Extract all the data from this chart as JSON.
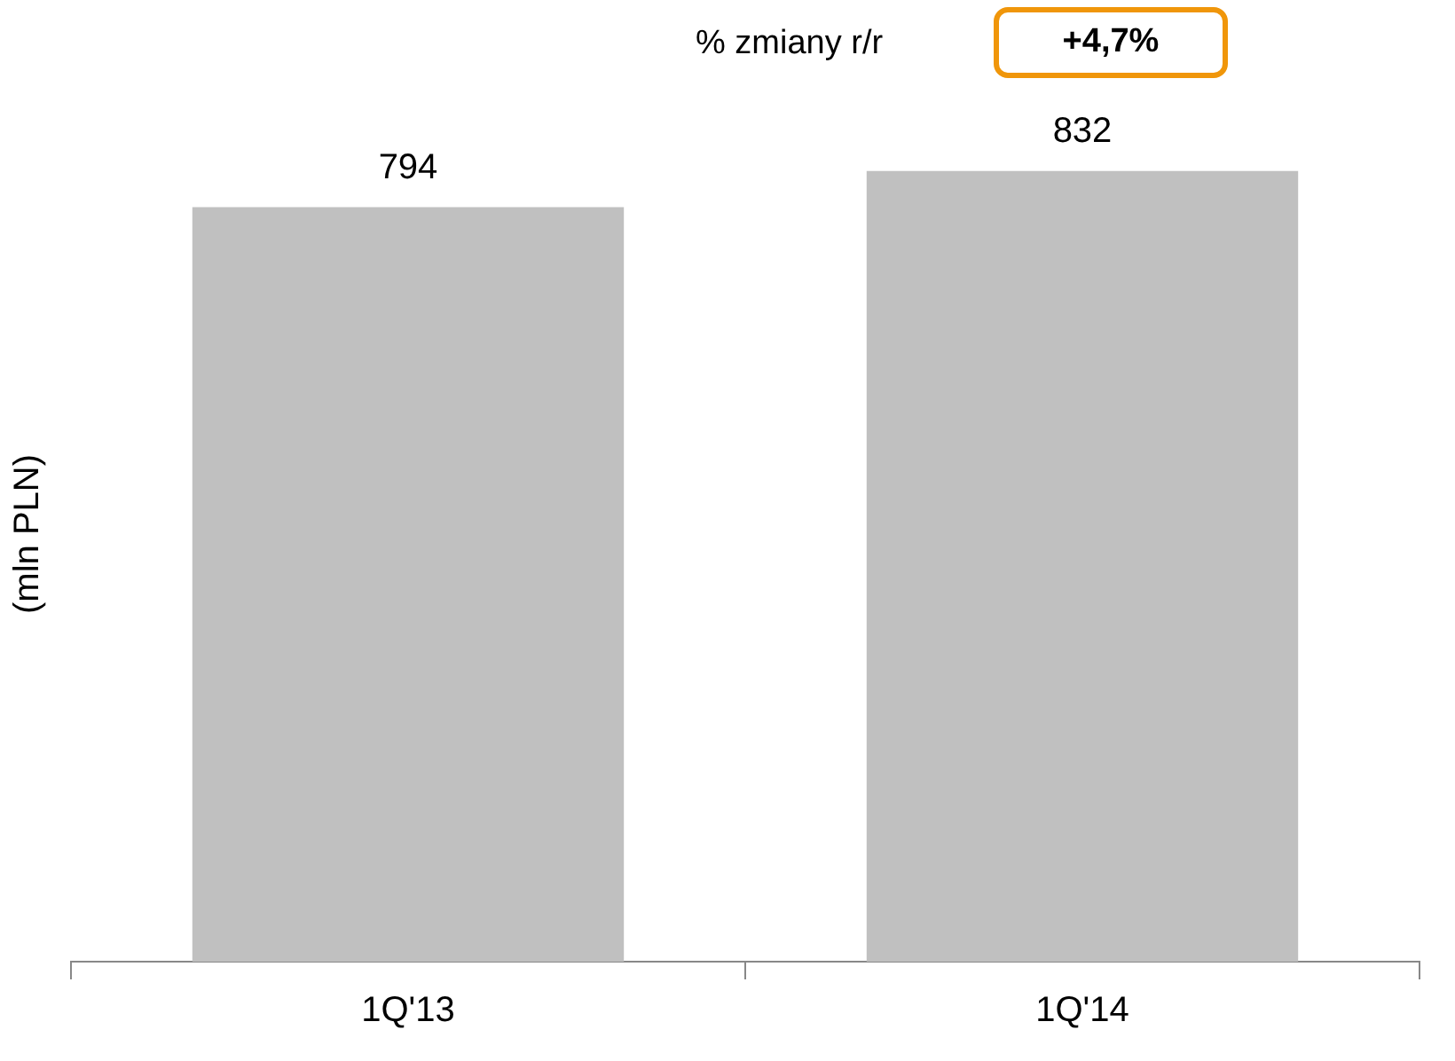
{
  "chart_data": {
    "type": "bar",
    "ylabel": "(mln PLN)",
    "categories": [
      "1Q'13",
      "1Q'14"
    ],
    "series": [
      {
        "color": "#c0c0c0",
        "values": [
          794,
          832
        ]
      }
    ],
    "tick_labels": "x",
    "data_labels": true,
    "grid": false,
    "legend": false,
    "annotations": [
      "% zmiany r/r",
      "+4,7%"
    ]
  }
}
